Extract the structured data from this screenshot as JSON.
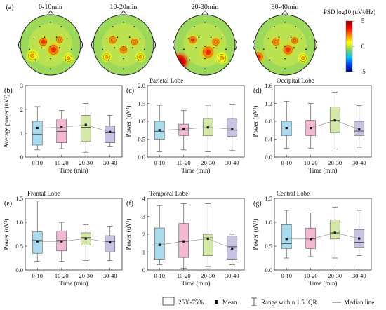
{
  "panel_a": {
    "label": "(a)",
    "maps": [
      {
        "title": "0-10min",
        "blobs": [
          {
            "u": 0.38,
            "v": 0.45,
            "r": 0.11,
            "level": 3.0
          },
          {
            "u": 0.55,
            "v": 0.58,
            "r": 0.14,
            "level": 3.2
          },
          {
            "u": 0.65,
            "v": 0.42,
            "r": 0.09,
            "level": 2.5
          },
          {
            "u": 0.2,
            "v": 0.68,
            "r": 0.12,
            "level": 1.8
          },
          {
            "u": 0.8,
            "v": 0.72,
            "r": 0.1,
            "level": 1.5
          }
        ]
      },
      {
        "title": "10-20min",
        "blobs": [
          {
            "u": 0.32,
            "v": 0.42,
            "r": 0.1,
            "level": 2.6
          },
          {
            "u": 0.5,
            "v": 0.58,
            "r": 0.1,
            "level": 2.8
          },
          {
            "u": 0.68,
            "v": 0.45,
            "r": 0.09,
            "level": 2.4
          },
          {
            "u": 0.22,
            "v": 0.7,
            "r": 0.1,
            "level": 1.6
          },
          {
            "u": 0.78,
            "v": 0.7,
            "r": 0.1,
            "level": 1.6
          }
        ]
      },
      {
        "title": "20-30min",
        "blobs": [
          {
            "u": 0.3,
            "v": 0.42,
            "r": 0.1,
            "level": 3.2
          },
          {
            "u": 0.55,
            "v": 0.62,
            "r": 0.15,
            "level": 4.2
          },
          {
            "u": 0.68,
            "v": 0.45,
            "r": 0.1,
            "level": 2.8
          },
          {
            "u": 0.08,
            "v": 0.78,
            "r": 0.18,
            "level": 5.0
          },
          {
            "u": 0.78,
            "v": 0.72,
            "r": 0.12,
            "level": 2.2
          }
        ]
      },
      {
        "title": "30-40min",
        "blobs": [
          {
            "u": 0.35,
            "v": 0.45,
            "r": 0.1,
            "level": 2.8
          },
          {
            "u": 0.55,
            "v": 0.58,
            "r": 0.13,
            "level": 3.0
          },
          {
            "u": 0.66,
            "v": 0.43,
            "r": 0.09,
            "level": 2.4
          },
          {
            "u": 0.06,
            "v": 0.7,
            "r": 0.13,
            "level": 3.8
          },
          {
            "u": 0.8,
            "v": 0.72,
            "r": 0.1,
            "level": 1.8
          }
        ]
      }
    ],
    "colorbar": {
      "title": "PSD log10 (uV²/Hz)",
      "ticks": [
        "5",
        "0",
        "-5"
      ],
      "range": [
        -5,
        5
      ],
      "colors": [
        "#8b0000",
        "#ff0000",
        "#ff8c00",
        "#ffff00",
        "#7fd35a",
        "#00c8ff",
        "#0040ff",
        "#000080"
      ]
    }
  },
  "chart_data": [
    {
      "panel": "(b)",
      "type": "box",
      "title": "",
      "xlabel": "Time (min)",
      "ylabel": "Average power (uV²)",
      "ylim": [
        0,
        3
      ],
      "yticks": [
        "0",
        "1",
        "2",
        "3"
      ],
      "categories": [
        "0-10",
        "10-20",
        "20-30",
        "30-40"
      ],
      "colors": [
        "#aadcf0",
        "#f5b8d2",
        "#d4e8a8",
        "#c8c3e3"
      ],
      "boxes": [
        {
          "min": 0.3,
          "q1": 0.5,
          "median": 0.95,
          "q3": 1.5,
          "max": 2.12,
          "mean": 1.22
        },
        {
          "min": 0.35,
          "q1": 0.6,
          "median": 1.08,
          "q3": 1.6,
          "max": 1.95,
          "mean": 1.25
        },
        {
          "min": 0.2,
          "q1": 0.65,
          "median": 1.25,
          "q3": 1.75,
          "max": 2.25,
          "mean": 1.35
        },
        {
          "min": 0.45,
          "q1": 0.6,
          "median": 1.05,
          "q3": 1.3,
          "max": 1.75,
          "mean": 1.05
        }
      ]
    },
    {
      "panel": "(c)",
      "type": "box",
      "title": "Parietal Lobe",
      "xlabel": "Time (min)",
      "ylabel": "Power (uV²)",
      "ylim": [
        0,
        2
      ],
      "yticks": [
        "0.0",
        "0.5",
        "1.0",
        "1.5",
        "2.0"
      ],
      "categories": [
        "0-10",
        "10-20",
        "20-30",
        "30-40"
      ],
      "colors": [
        "#aadcf0",
        "#f5b8d2",
        "#d4e8a8",
        "#c8c3e3"
      ],
      "boxes": [
        {
          "min": 0.15,
          "q1": 0.5,
          "median": 0.72,
          "q3": 1.0,
          "max": 1.45,
          "mean": 0.75
        },
        {
          "min": 0.2,
          "q1": 0.6,
          "median": 0.75,
          "q3": 0.92,
          "max": 1.3,
          "mean": 0.78
        },
        {
          "min": 0.15,
          "q1": 0.6,
          "median": 0.82,
          "q3": 1.08,
          "max": 1.45,
          "mean": 0.83
        },
        {
          "min": 0.18,
          "q1": 0.58,
          "median": 0.75,
          "q3": 1.08,
          "max": 1.48,
          "mean": 0.78
        }
      ]
    },
    {
      "panel": "(d)",
      "type": "box",
      "title": "Occipital Lobe",
      "xlabel": "Time (min)",
      "ylabel": "Power (uV²)",
      "ylim": [
        0,
        1.6
      ],
      "yticks": [
        "0.0",
        "0.4",
        "0.8",
        "1.2",
        "1.6"
      ],
      "categories": [
        "0-10",
        "10-20",
        "20-30",
        "30-40"
      ],
      "colors": [
        "#aadcf0",
        "#f5b8d2",
        "#d4e8a8",
        "#c8c3e3"
      ],
      "boxes": [
        {
          "min": 0.2,
          "q1": 0.48,
          "median": 0.65,
          "q3": 0.8,
          "max": 1.25,
          "mean": 0.65
        },
        {
          "min": 0.2,
          "q1": 0.48,
          "median": 0.65,
          "q3": 0.82,
          "max": 1.2,
          "mean": 0.65
        },
        {
          "min": 0.18,
          "q1": 0.55,
          "median": 0.82,
          "q3": 1.12,
          "max": 1.45,
          "mean": 0.82
        },
        {
          "min": 0.22,
          "q1": 0.48,
          "median": 0.58,
          "q3": 0.8,
          "max": 1.15,
          "mean": 0.62
        }
      ]
    },
    {
      "panel": "(e)",
      "type": "box",
      "title": "Frontal Lobe",
      "xlabel": "Time (min)",
      "ylabel": "Power (uV²)",
      "ylim": [
        0,
        1.5
      ],
      "yticks": [
        "0.0",
        "0.5",
        "1.0",
        "1.5"
      ],
      "categories": [
        "0-10",
        "10-20",
        "20-30",
        "30-40"
      ],
      "colors": [
        "#aadcf0",
        "#f5b8d2",
        "#d4e8a8",
        "#c8c3e3"
      ],
      "boxes": [
        {
          "min": 0.18,
          "q1": 0.35,
          "median": 0.62,
          "q3": 0.8,
          "max": 1.45,
          "mean": 0.6
        },
        {
          "min": 0.18,
          "q1": 0.4,
          "median": 0.62,
          "q3": 0.82,
          "max": 1.0,
          "mean": 0.6
        },
        {
          "min": 0.2,
          "q1": 0.52,
          "median": 0.68,
          "q3": 0.78,
          "max": 0.95,
          "mean": 0.66
        },
        {
          "min": 0.2,
          "q1": 0.38,
          "median": 0.6,
          "q3": 0.72,
          "max": 0.92,
          "mean": 0.58
        }
      ]
    },
    {
      "panel": "(f)",
      "type": "box",
      "title": "Temporal Lobe",
      "xlabel": "Time (min)",
      "ylabel": "Power (uV²)",
      "ylim": [
        0,
        4
      ],
      "yticks": [
        "0",
        "1",
        "2",
        "3",
        "4"
      ],
      "categories": [
        "0-10",
        "10-20",
        "20-30",
        "30-40"
      ],
      "colors": [
        "#aadcf0",
        "#f5b8d2",
        "#d4e8a8",
        "#c8c3e3"
      ],
      "boxes": [
        {
          "min": 0.3,
          "q1": 0.6,
          "median": 1.5,
          "q3": 2.35,
          "max": 3.6,
          "mean": 1.4
        },
        {
          "min": 0.1,
          "q1": 0.7,
          "median": 1.6,
          "q3": 2.6,
          "max": 3.7,
          "mean": 1.6
        },
        {
          "min": 0.2,
          "q1": 0.8,
          "median": 1.8,
          "q3": 2.0,
          "max": 3.7,
          "mean": 1.75
        },
        {
          "min": 0.3,
          "q1": 0.6,
          "median": 1.3,
          "q3": 1.9,
          "max": 2.0,
          "mean": 1.2
        }
      ]
    },
    {
      "panel": "(g)",
      "type": "box",
      "title": "Central Lobe",
      "xlabel": "Time (min)",
      "ylabel": "Power (uV²)",
      "ylim": [
        0,
        1.5
      ],
      "yticks": [
        "0.0",
        "0.5",
        "1.0",
        "1.5"
      ],
      "categories": [
        "0-10",
        "10-20",
        "20-30",
        "30-40"
      ],
      "colors": [
        "#aadcf0",
        "#f5b8d2",
        "#d4e8a8",
        "#c8c3e3"
      ],
      "boxes": [
        {
          "min": 0.25,
          "q1": 0.45,
          "median": 0.55,
          "q3": 0.95,
          "max": 1.25,
          "mean": 0.65
        },
        {
          "min": 0.28,
          "q1": 0.45,
          "median": 0.65,
          "q3": 0.88,
          "max": 1.2,
          "mean": 0.65
        },
        {
          "min": 0.25,
          "q1": 0.65,
          "median": 0.78,
          "q3": 1.05,
          "max": 1.32,
          "mean": 0.78
        },
        {
          "min": 0.3,
          "q1": 0.48,
          "median": 0.58,
          "q3": 0.85,
          "max": 1.25,
          "mean": 0.66
        }
      ]
    }
  ],
  "legend": {
    "box": "25%-75%",
    "mean": "Mean",
    "range": "Range within 1.5 IQR",
    "median": "Median line"
  }
}
